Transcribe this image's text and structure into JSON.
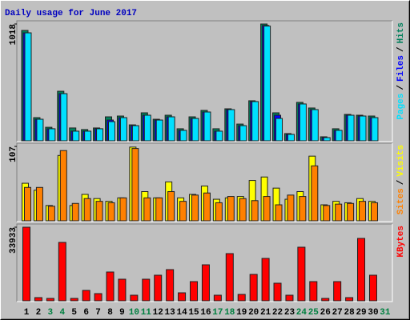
{
  "title": "Daily usage for June 2017",
  "legend_separator": "/",
  "chart_data": [
    {
      "type": "bar",
      "ylim": [
        0,
        1018
      ],
      "yticks": [
        1018
      ],
      "series": [
        {
          "name": "Hits",
          "color": "#00805c",
          "values": [
            962,
            202,
            118,
            432,
            112,
            98,
            112,
            209,
            216,
            139,
            244,
            188,
            223,
            105,
            209,
            265,
            105,
            279,
            146,
            349,
            1018,
            244,
            63,
            335,
            286,
            35,
            105,
            230,
            223,
            216,
            0
          ]
        },
        {
          "name": "Files",
          "color": "#0000ff",
          "values": [
            941,
            188,
            105,
            411,
            84,
            84,
            105,
            181,
            202,
            132,
            223,
            181,
            209,
            91,
            195,
            251,
            84,
            272,
            132,
            342,
            1005,
            223,
            56,
            321,
            272,
            28,
            91,
            223,
            216,
            202,
            0
          ]
        },
        {
          "name": "Pages",
          "color": "#00e0ff",
          "values": [
            941,
            188,
            105,
            411,
            84,
            84,
            105,
            167,
            202,
            132,
            223,
            181,
            209,
            91,
            195,
            251,
            84,
            272,
            132,
            342,
            1000,
            195,
            56,
            321,
            272,
            28,
            91,
            223,
            216,
            202,
            0
          ]
        }
      ]
    },
    {
      "type": "bar",
      "ylim": [
        0,
        107
      ],
      "yticks": [
        107
      ],
      "series": [
        {
          "name": "Visits",
          "color": "#ffff00",
          "values": [
            54,
            44,
            22,
            94,
            22,
            38,
            32,
            28,
            33,
            106,
            42,
            33,
            56,
            33,
            38,
            50,
            31,
            33,
            35,
            58,
            63,
            47,
            31,
            42,
            93,
            23,
            28,
            26,
            32,
            28,
            0
          ]
        },
        {
          "name": "Sites",
          "color": "#ff8000",
          "values": [
            48,
            48,
            21,
            101,
            25,
            32,
            28,
            26,
            33,
            104,
            33,
            33,
            42,
            28,
            37,
            40,
            26,
            35,
            32,
            29,
            35,
            23,
            37,
            35,
            79,
            22,
            24,
            25,
            28,
            26,
            0
          ]
        }
      ]
    },
    {
      "type": "bar",
      "ylim": [
        0,
        33933
      ],
      "yticks": [
        33933
      ],
      "categories": [
        "1",
        "2",
        "3",
        "4",
        "5",
        "6",
        "7",
        "8",
        "9",
        "10",
        "11",
        "12",
        "13",
        "14",
        "15",
        "16",
        "17",
        "18",
        "19",
        "20",
        "21",
        "22",
        "23",
        "24",
        "25",
        "26",
        "27",
        "28",
        "29",
        "30",
        "31"
      ],
      "category_colors": [
        "#000000",
        "#000000",
        "#008040",
        "#008040",
        "#000000",
        "#000000",
        "#000000",
        "#000000",
        "#000000",
        "#008040",
        "#008040",
        "#000000",
        "#000000",
        "#000000",
        "#000000",
        "#000000",
        "#008040",
        "#008040",
        "#000000",
        "#000000",
        "#000000",
        "#000000",
        "#000000",
        "#008040",
        "#008040",
        "#000000",
        "#000000",
        "#000000",
        "#000000",
        "#000000",
        "#008040"
      ],
      "series": [
        {
          "name": "KBytes",
          "color": "#ff0000",
          "values": [
            33933,
            1475,
            1106,
            26925,
            1106,
            4795,
            3320,
            13278,
            9958,
            2582,
            9958,
            11803,
            14385,
            3688,
            8852,
            16598,
            2582,
            21761,
            2951,
            12172,
            19548,
            8115,
            2582,
            24712,
            8852,
            1106,
            8852,
            1475,
            28769,
            11803,
            0
          ]
        }
      ]
    }
  ]
}
